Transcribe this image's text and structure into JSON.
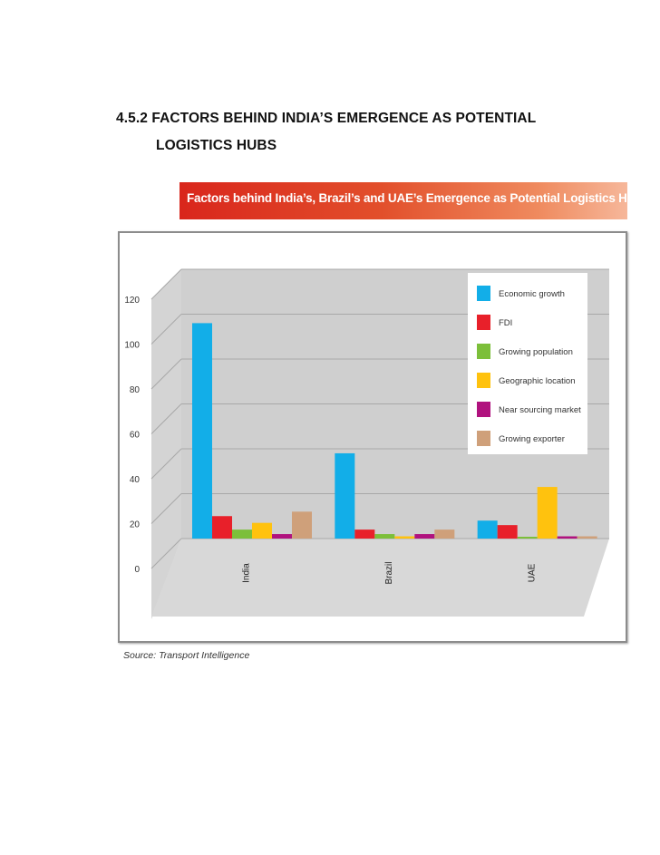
{
  "document": {
    "heading_line1": "4.5.2 FACTORS BEHIND INDIA’S EMERGENCE AS POTENTIAL",
    "heading_line2": "LOGISTICS HUBS",
    "source": "Source: Transport Intelligence"
  },
  "colors": {
    "banner": "#d9261c",
    "series": [
      "#12aee8",
      "#e8202a",
      "#7cbf3a",
      "#ffc20e",
      "#b0127e",
      "#cfa07a"
    ]
  },
  "chart_data": {
    "type": "bar",
    "title": "Factors behind India’s, Brazil’s and UAE’s Emergence as Potential Logistics Hubs",
    "xlabel": "",
    "ylabel": "",
    "ylim": [
      0,
      120
    ],
    "yticks": [
      0,
      20,
      40,
      60,
      80,
      100,
      120
    ],
    "grid": true,
    "legend_position": "top-right",
    "categories": [
      "India",
      "Brazil",
      "UAE"
    ],
    "series": [
      {
        "name": "Economic growth",
        "values": [
          96,
          38,
          8
        ]
      },
      {
        "name": "FDI",
        "values": [
          10,
          4,
          6
        ]
      },
      {
        "name": "Growing population",
        "values": [
          4,
          2,
          0
        ]
      },
      {
        "name": "Geographic location",
        "values": [
          7,
          1,
          23
        ]
      },
      {
        "name": "Near sourcing market",
        "values": [
          2,
          2,
          1
        ]
      },
      {
        "name": "Growing exporter",
        "values": [
          12,
          4,
          1
        ]
      }
    ]
  }
}
